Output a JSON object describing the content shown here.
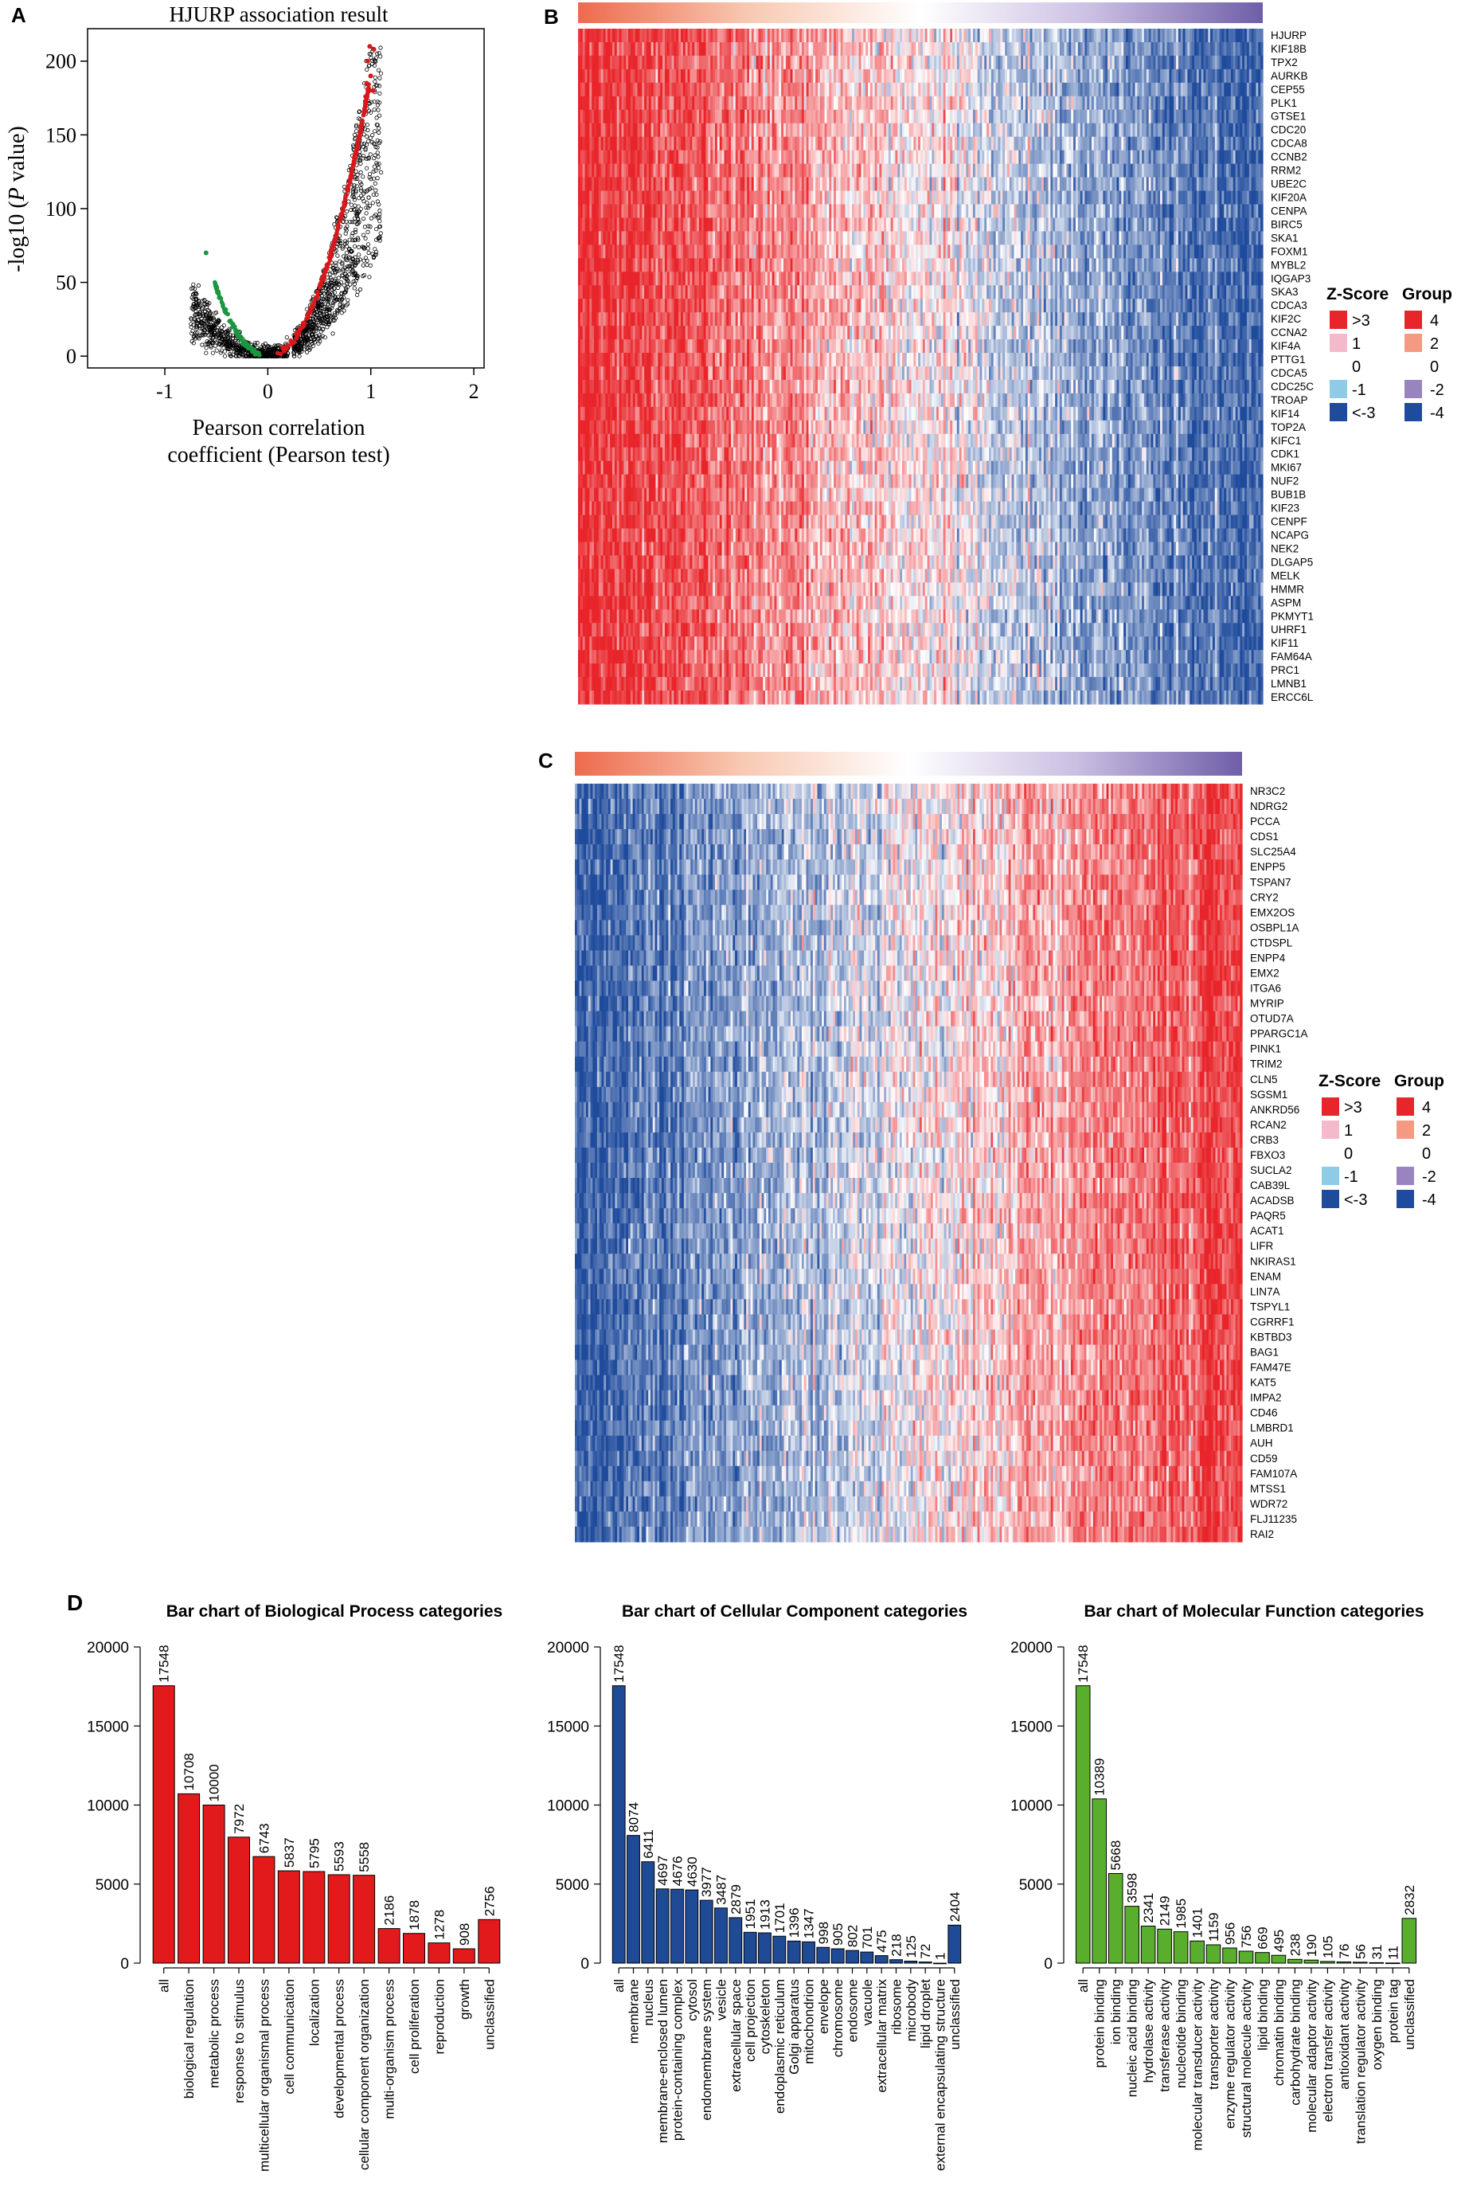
{
  "panels": {
    "a": "A",
    "b": "B",
    "c": "C",
    "d": "D"
  },
  "colors": {
    "heat_high": "#e8252a",
    "heat_mid": "#ffffff",
    "heat_low": "#1f4b9c",
    "group_high": "#e8252a",
    "group_low": "#6f5ea8",
    "volcano_pos": "#d7191c",
    "volcano_neg": "#1a9641",
    "volcano_ns": "#000000",
    "bp_bar": "#e31a1c",
    "cc_bar": "#1f4a96",
    "mf_bar": "#5aae2e"
  },
  "chart_data": [
    {
      "id": "volcano",
      "type": "scatter",
      "title": "HJURP association result",
      "xlabel_line1": "Pearson correlation",
      "xlabel_line2": "coefficient (Pearson test)",
      "ylabel_prefix": "-log10 (",
      "ylabel_italic": "P",
      "ylabel_suffix": " value)",
      "xlim": [
        -1.75,
        2.1
      ],
      "ylim": [
        -8,
        222
      ],
      "xticks": [
        "-1",
        "0",
        "1",
        "2"
      ],
      "yticks": [
        "0",
        "50",
        "100",
        "150",
        "200"
      ],
      "grid": false
    },
    {
      "id": "heatmap-positive",
      "type": "heatmap",
      "rows": [
        "HJURP",
        "KIF18B",
        "TPX2",
        "AURKB",
        "CEP55",
        "PLK1",
        "GTSE1",
        "CDC20",
        "CDCA8",
        "CCNB2",
        "RRM2",
        "UBE2C",
        "KIF20A",
        "CENPA",
        "BIRC5",
        "SKA1",
        "FOXM1",
        "MYBL2",
        "IQGAP3",
        "SKA3",
        "CDCA3",
        "KIF2C",
        "CCNA2",
        "KIF4A",
        "PTTG1",
        "CDCA5",
        "CDC25C",
        "TROAP",
        "KIF14",
        "TOP2A",
        "KIFC1",
        "CDK1",
        "MKI67",
        "NUF2",
        "BUB1B",
        "KIF23",
        "CENPF",
        "NCAPG",
        "NEK2",
        "DLGAP5",
        "MELK",
        "HMMR",
        "ASPM",
        "PKMYT1",
        "UHRF1",
        "KIF11",
        "FAM64A",
        "PRC1",
        "LMNB1",
        "ERCC6L"
      ],
      "gradient": "high-to-low",
      "legend": {
        "zscore_title": "Z-Score",
        "zscore_labels": [
          ">3",
          "1",
          "0",
          "-1",
          "<-3"
        ],
        "group_title": "Group",
        "group_labels": [
          "4",
          "2",
          "0",
          "-2",
          "-4"
        ]
      }
    },
    {
      "id": "heatmap-negative",
      "type": "heatmap",
      "rows": [
        "NR3C2",
        "NDRG2",
        "PCCA",
        "CDS1",
        "SLC25A4",
        "ENPP5",
        "TSPAN7",
        "CRY2",
        "EMX2OS",
        "OSBPL1A",
        "CTDSPL",
        "ENPP4",
        "EMX2",
        "ITGA6",
        "MYRIP",
        "OTUD7A",
        "PPARGC1A",
        "PINK1",
        "TRIM2",
        "CLN5",
        "SGSM1",
        "ANKRD56",
        "RCAN2",
        "CRB3",
        "FBXO3",
        "SUCLA2",
        "CAB39L",
        "ACADSB",
        "PAQR5",
        "ACAT1",
        "LIFR",
        "NKIRAS1",
        "ENAM",
        "LIN7A",
        "TSPYL1",
        "CGRRF1",
        "KBTBD3",
        "BAG1",
        "FAM47E",
        "KAT5",
        "IMPA2",
        "CD46",
        "LMBRD1",
        "AUH",
        "CD59",
        "FAM107A",
        "MTSS1",
        "WDR72",
        "FLJ11235",
        "RAI2"
      ],
      "gradient": "low-to-high",
      "legend": {
        "zscore_title": "Z-Score",
        "zscore_labels": [
          ">3",
          "1",
          "0",
          "-1",
          "<-3"
        ],
        "group_title": "Group",
        "group_labels": [
          "4",
          "2",
          "0",
          "-2",
          "-4"
        ]
      }
    },
    {
      "id": "bp",
      "type": "bar",
      "title": "Bar chart of Biological Process categories",
      "categories": [
        "all",
        "biological regulation",
        "metabolic process",
        "response to stimulus",
        "multicellular organismal process",
        "cell communication",
        "localization",
        "developmental process",
        "cellular component organization",
        "multi-organism process",
        "cell proliferation",
        "reproduction",
        "growth",
        "unclassified"
      ],
      "values": [
        17548,
        10708,
        10000,
        7972,
        6743,
        5837,
        5795,
        5593,
        5558,
        2186,
        1878,
        1278,
        908,
        2756
      ],
      "labels": [
        "17548",
        "10708",
        "10000",
        "7972",
        "6743",
        "5837",
        "5795",
        "5593",
        "5558",
        "2186",
        "1878",
        "1278",
        "908",
        "2756"
      ],
      "ylim": [
        0,
        20000
      ],
      "yticks": [
        "0",
        "5000",
        "10000",
        "15000",
        "20000"
      ]
    },
    {
      "id": "cc",
      "type": "bar",
      "title": "Bar chart of Cellular Component categories",
      "categories": [
        "all",
        "membrane",
        "nucleus",
        "membrane-enclosed lumen",
        "protein-containing complex",
        "cytosol",
        "endomembrane system",
        "vesicle",
        "extracellular space",
        "cell projection",
        "cytoskeleton",
        "endoplasmic reticulum",
        "Golgi apparatus",
        "mitochondrion",
        "envelope",
        "chromosome",
        "endosome",
        "vacuole",
        "extracellular matrix",
        "ribosome",
        "microbody",
        "lipid droplet",
        "external encapsulating structure",
        "unclassified"
      ],
      "values": [
        17548,
        8074,
        6411,
        4697,
        4676,
        4630,
        3977,
        3487,
        2879,
        1951,
        1913,
        1701,
        1396,
        1347,
        998,
        905,
        802,
        701,
        475,
        218,
        125,
        72,
        1,
        2404
      ],
      "labels": [
        "17548",
        "8074",
        "6411",
        "4697",
        "4676",
        "4630",
        "3977",
        "3487",
        "2879",
        "1951",
        "1913",
        "1701",
        "1396",
        "1347",
        "998",
        "905",
        "802",
        "701",
        "475",
        "218",
        "125",
        "72",
        "1",
        "2404"
      ],
      "ylim": [
        0,
        20000
      ],
      "yticks": [
        "0",
        "5000",
        "10000",
        "15000",
        "20000"
      ]
    },
    {
      "id": "mf",
      "type": "bar",
      "title": "Bar chart of Molecular Function categories",
      "categories": [
        "all",
        "protein binding",
        "ion binding",
        "nucleic acid binding",
        "hydrolase activity",
        "transferase activity",
        "nucleotide binding",
        "molecular transducer activity",
        "transporter activity",
        "enzyme regulator activity",
        "structural molecule activity",
        "lipid binding",
        "chromatin binding",
        "carbohydrate binding",
        "molecular adaptor activity",
        "electron transfer activity",
        "antioxidant activity",
        "translation regulator activity",
        "oxygen binding",
        "protein tag",
        "unclassified"
      ],
      "values": [
        17548,
        10389,
        5668,
        3598,
        2341,
        2149,
        1985,
        1401,
        1159,
        956,
        756,
        669,
        495,
        238,
        190,
        105,
        76,
        56,
        31,
        11,
        2832
      ],
      "labels": [
        "17548",
        "10389",
        "5668",
        "3598",
        "2341",
        "2149",
        "1985",
        "1401",
        "1159",
        "956",
        "756",
        "669",
        "495",
        "238",
        "190",
        "105",
        "76",
        "56",
        "31",
        "11",
        "2832"
      ],
      "ylim": [
        0,
        20000
      ],
      "yticks": [
        "0",
        "5000",
        "10000",
        "15000",
        "20000"
      ]
    }
  ]
}
